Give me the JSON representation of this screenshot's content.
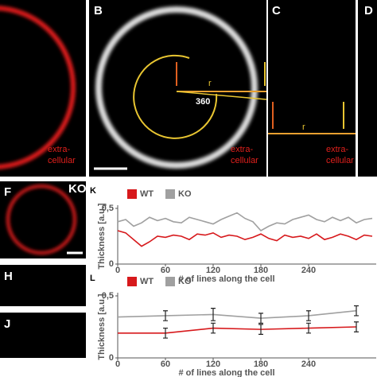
{
  "panel_labels": [
    "B",
    "C",
    "D",
    "F",
    "H",
    "J"
  ],
  "panel_a": {
    "text": [
      "extra-",
      "cellular"
    ]
  },
  "panel_b": {
    "r": "r",
    "angle": "360",
    "text": [
      "extra-",
      "cellular"
    ]
  },
  "panel_c": {
    "r": "r",
    "text": [
      "extra-",
      "cellular"
    ]
  },
  "panel_f": {
    "tag": "KO"
  },
  "chart_data": [
    {
      "type": "line",
      "panel": "K",
      "ylabel": "Thickness [a.u.]",
      "xlabel": "# of lines along the cell",
      "x": [
        0,
        10,
        20,
        30,
        40,
        50,
        60,
        70,
        80,
        90,
        100,
        110,
        120,
        130,
        140,
        150,
        160,
        170,
        180,
        190,
        200,
        210,
        220,
        230,
        240,
        250,
        260,
        270,
        280,
        290,
        300,
        310,
        320
      ],
      "series": [
        {
          "name": "WT",
          "color": "#d7191c",
          "values": [
            0.3,
            0.28,
            0.22,
            0.16,
            0.2,
            0.25,
            0.24,
            0.26,
            0.25,
            0.22,
            0.27,
            0.26,
            0.28,
            0.24,
            0.26,
            0.25,
            0.22,
            0.24,
            0.27,
            0.23,
            0.21,
            0.26,
            0.24,
            0.25,
            0.23,
            0.27,
            0.22,
            0.24,
            0.27,
            0.25,
            0.22,
            0.26,
            0.25
          ]
        },
        {
          "name": "KO",
          "color": "#a0a0a0",
          "values": [
            0.38,
            0.4,
            0.34,
            0.37,
            0.42,
            0.39,
            0.41,
            0.38,
            0.37,
            0.42,
            0.4,
            0.38,
            0.36,
            0.4,
            0.43,
            0.46,
            0.41,
            0.38,
            0.3,
            0.34,
            0.37,
            0.36,
            0.4,
            0.42,
            0.44,
            0.4,
            0.38,
            0.42,
            0.39,
            0.42,
            0.37,
            0.4,
            0.41
          ]
        }
      ],
      "xlim": [
        0,
        325
      ],
      "ylim": [
        0,
        0.5
      ],
      "xticks": [
        0,
        60,
        120,
        180,
        240
      ],
      "yticks": [
        0,
        {
          "value": 0.5,
          "label": "0,5"
        }
      ]
    },
    {
      "type": "line",
      "panel": "L",
      "ylabel": "Thickness [a.u.]",
      "xlabel": "# of lines along the cell",
      "x": [
        0,
        60,
        120,
        180,
        240,
        300
      ],
      "series": [
        {
          "name": "WT",
          "color": "#d7191c",
          "values": [
            0.2,
            0.2,
            0.24,
            0.23,
            0.24,
            0.25
          ],
          "errors": [
            null,
            0.04,
            0.04,
            0.04,
            0.04,
            0.04
          ]
        },
        {
          "name": "KO",
          "color": "#a0a0a0",
          "values": [
            0.33,
            0.34,
            0.35,
            0.32,
            0.34,
            0.38
          ],
          "errors": [
            null,
            0.04,
            0.05,
            0.04,
            0.04,
            0.04
          ]
        }
      ],
      "xlim": [
        0,
        325
      ],
      "ylim": [
        0,
        0.5
      ],
      "xticks": [
        0,
        60,
        120,
        180,
        240
      ],
      "yticks": [
        0,
        {
          "value": 0.5,
          "label": "0,5"
        }
      ]
    }
  ]
}
